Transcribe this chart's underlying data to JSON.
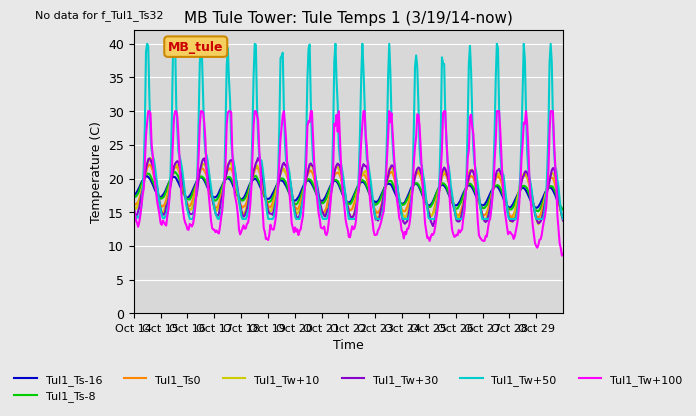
{
  "title": "MB Tule Tower: Tule Temps 1 (3/19/14-now)",
  "subtitle": "No data for f_Tul1_Ts32",
  "xlabel": "Time",
  "ylabel": "Temperature (C)",
  "ylim": [
    0,
    42
  ],
  "yticks": [
    0,
    5,
    10,
    15,
    20,
    25,
    30,
    35,
    40
  ],
  "background_color": "#e8e8e8",
  "plot_bg_color": "#d8d8d8",
  "annotation_label": "MB_tule",
  "annotation_color": "#cc8800",
  "annotation_text_color": "#cc0000",
  "x_labels": [
    "Oct 14",
    "Oct 15",
    "Oct 16",
    "Oct 17",
    "Oct 18",
    "Oct 19",
    "Oct 20",
    "Oct 21",
    "Oct 22",
    "Oct 23",
    "Oct 24",
    "Oct 25",
    "Oct 26",
    "Oct 27",
    "Oct 28",
    "Oct 29"
  ],
  "series": [
    {
      "label": "Tul1_Ts-16",
      "color": "#0000cc",
      "lw": 1.5
    },
    {
      "label": "Tul1_Ts-8",
      "color": "#00cc00",
      "lw": 1.5
    },
    {
      "label": "Tul1_Ts0",
      "color": "#ff8800",
      "lw": 1.5
    },
    {
      "label": "Tul1_Tw+10",
      "color": "#cccc00",
      "lw": 1.5
    },
    {
      "label": "Tul1_Tw+30",
      "color": "#8800cc",
      "lw": 1.5
    },
    {
      "label": "Tul1_Tw+50",
      "color": "#00cccc",
      "lw": 1.5
    },
    {
      "label": "Tul1_Tw+100",
      "color": "#ff00ff",
      "lw": 1.5
    }
  ]
}
